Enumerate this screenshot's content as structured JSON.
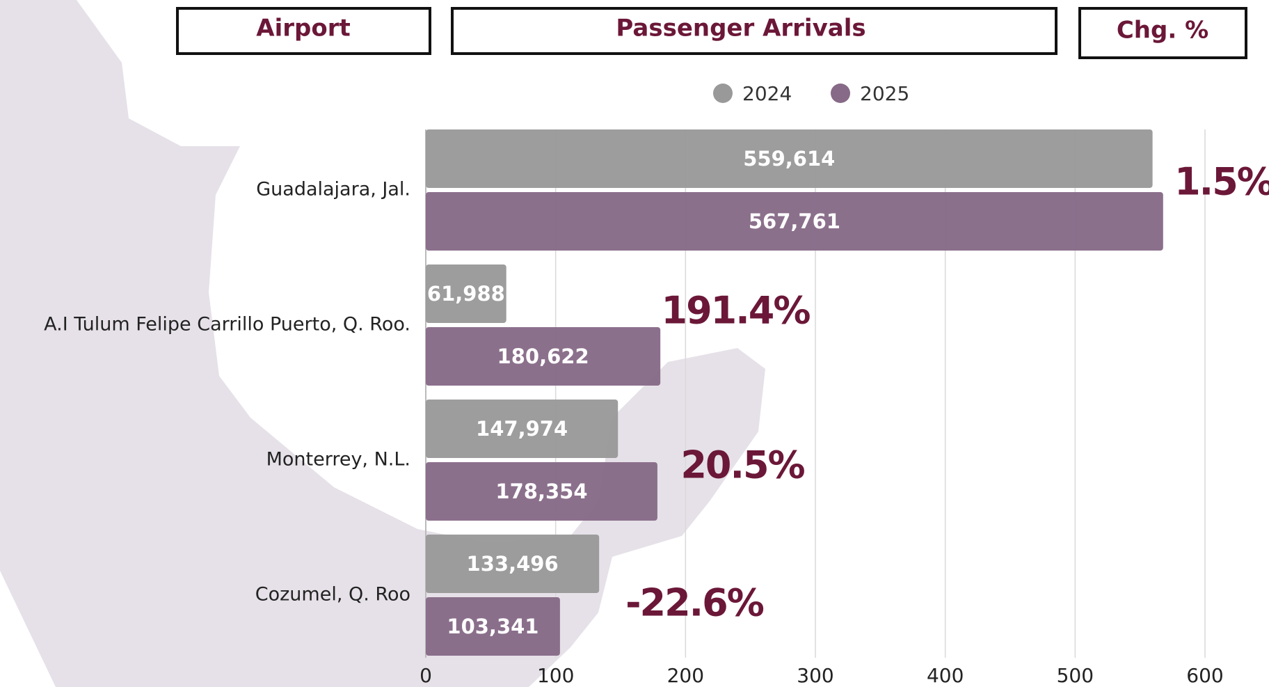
{
  "headers": [
    "Airport",
    "Passenger Arrivals",
    "Chg. %"
  ],
  "chart_data": {
    "type": "bar",
    "orientation": "horizontal",
    "categories": [
      "Guadalajara, Jal.",
      "A.I Tulum Felipe Carrillo Puerto, Q. Roo.",
      "Monterrey, N.L.",
      "Cozumel, Q. Roo"
    ],
    "series": [
      {
        "name": "2024",
        "color": "#999999",
        "values": [
          559.614,
          61.988,
          147.974,
          133.496
        ],
        "value_labels": [
          "559,614",
          "61,988",
          "147,974",
          "133,496"
        ]
      },
      {
        "name": "2025",
        "color": "#866a87",
        "values": [
          567.761,
          180.622,
          178.354,
          103.341
        ],
        "value_labels": [
          "567,761",
          "180,622",
          "178,354",
          "103,341"
        ]
      }
    ],
    "change_labels": [
      "1.5%",
      "191.4%",
      "20.5%",
      "-22.6%"
    ],
    "xlim": [
      0,
      600
    ],
    "xticks": [
      0,
      100,
      200,
      300,
      400,
      500,
      600
    ],
    "grid": true
  }
}
